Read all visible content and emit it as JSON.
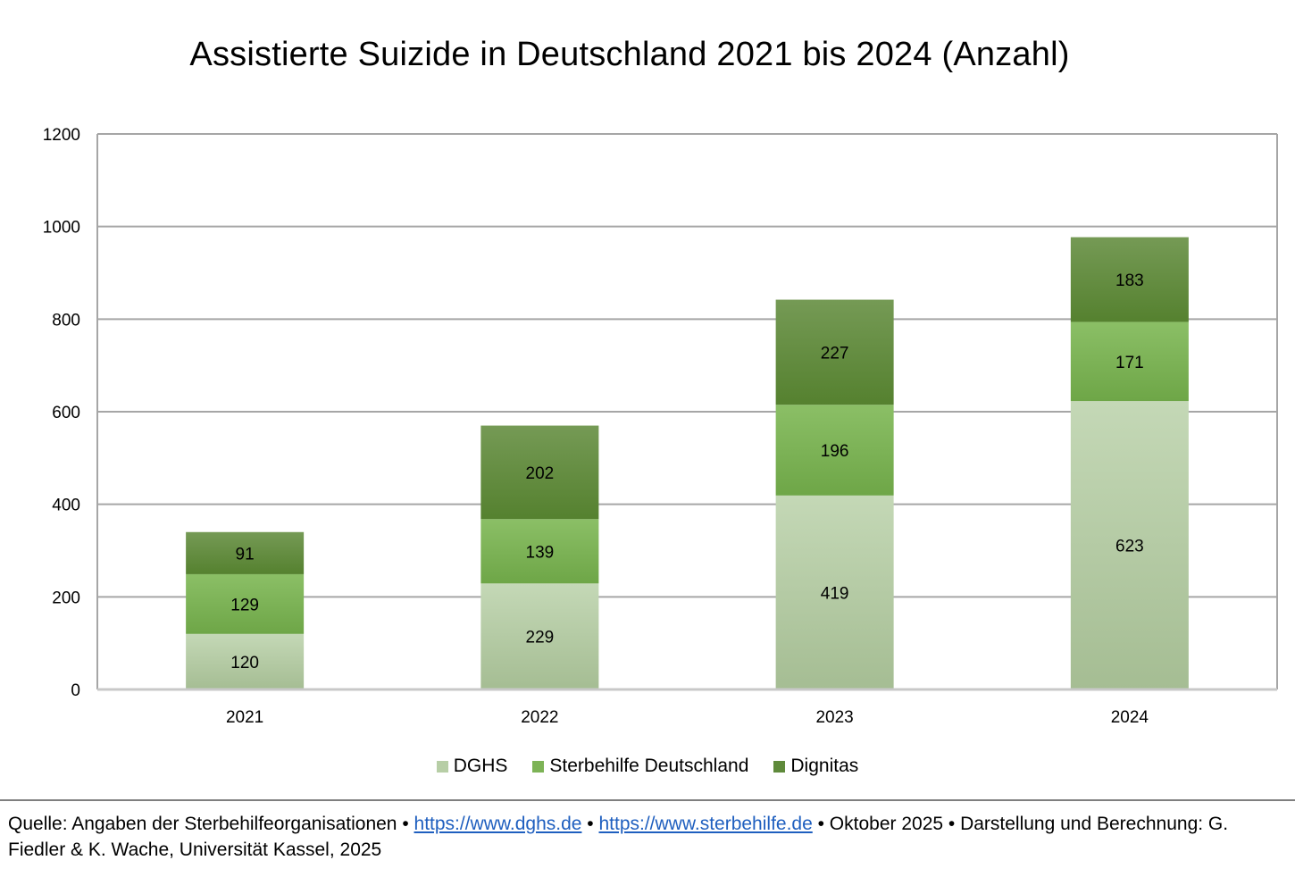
{
  "chart_data": {
    "type": "bar",
    "stacked": true,
    "title": "Assistierte Suizide in Deutschland 2021 bis 2024 (Anzahl)",
    "xlabel": "",
    "ylabel": "",
    "categories": [
      "2021",
      "2022",
      "2023",
      "2024"
    ],
    "series": [
      {
        "name": "DGHS",
        "values": [
          120,
          229,
          419,
          623
        ],
        "color": "#b7cea6"
      },
      {
        "name": "Sterbehilfe Deutschland",
        "values": [
          129,
          139,
          196,
          171
        ],
        "color": "#7db356"
      },
      {
        "name": "Dignitas",
        "values": [
          91,
          202,
          227,
          183
        ],
        "color": "#5f8a3b"
      }
    ],
    "ylim": [
      0,
      1200
    ],
    "yticks": [
      0,
      200,
      400,
      600,
      800,
      1000,
      1200
    ],
    "grid": true,
    "legend_position": "bottom"
  },
  "source": {
    "prefix": "Quelle: Angaben der Sterbehilfeorganisationen • ",
    "link1": "https://www.dghs.de",
    "sep": " • ",
    "link2": "https://www.sterbehilfe.de",
    "suffix": " • Oktober 2025 • Darstellung und Berechnung: G. Fiedler & K. Wache, Universität Kassel, 2025"
  }
}
